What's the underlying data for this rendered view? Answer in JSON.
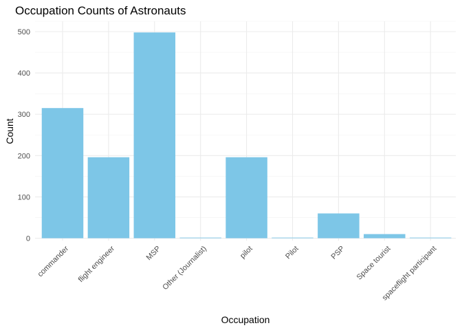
{
  "chart_data": {
    "type": "bar",
    "title": "Occupation Counts of Astronauts",
    "xlabel": "Occupation",
    "ylabel": "Count",
    "categories": [
      "commander",
      "flight engineer",
      "MSP",
      "Other (Journalist)",
      "pilot",
      "Pilot",
      "PSP",
      "Space tourist",
      "spaceflight participant"
    ],
    "values": [
      315,
      196,
      498,
      1,
      196,
      1,
      60,
      10,
      1
    ],
    "ylim": [
      0,
      520
    ],
    "yticks": [
      0,
      100,
      200,
      300,
      400,
      500
    ],
    "grid": true,
    "legend": "none",
    "colors": {
      "bar": "#7DC6E7",
      "grid": "#EBEBEB",
      "tick_text": "#4D4D4D"
    }
  }
}
